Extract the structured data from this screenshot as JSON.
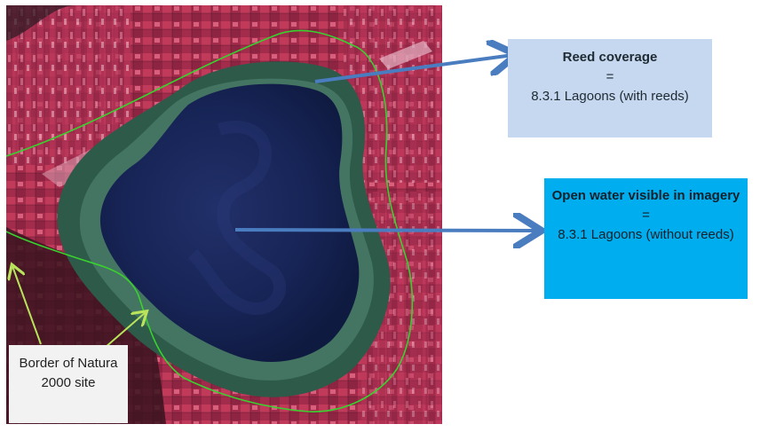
{
  "map": {
    "description_icon": "satellite-image",
    "colors": {
      "water": "#14204a",
      "vegetation": "#b02a4e",
      "reeds": "#2f5a4e",
      "boundary_line": "#39d12e",
      "arrow": "#4a7cc0",
      "pointer": "#b8e35a"
    }
  },
  "annotations": {
    "reed": {
      "title": "Reed coverage",
      "equals": "=",
      "class_label": "8.3.1 Lagoons (with reeds)"
    },
    "open_water": {
      "title": "Open water visible in imagery",
      "equals": "=",
      "class_label": "8.3.1 Lagoons (without reeds)"
    },
    "border": {
      "label": "Border of Natura 2000 site"
    }
  }
}
